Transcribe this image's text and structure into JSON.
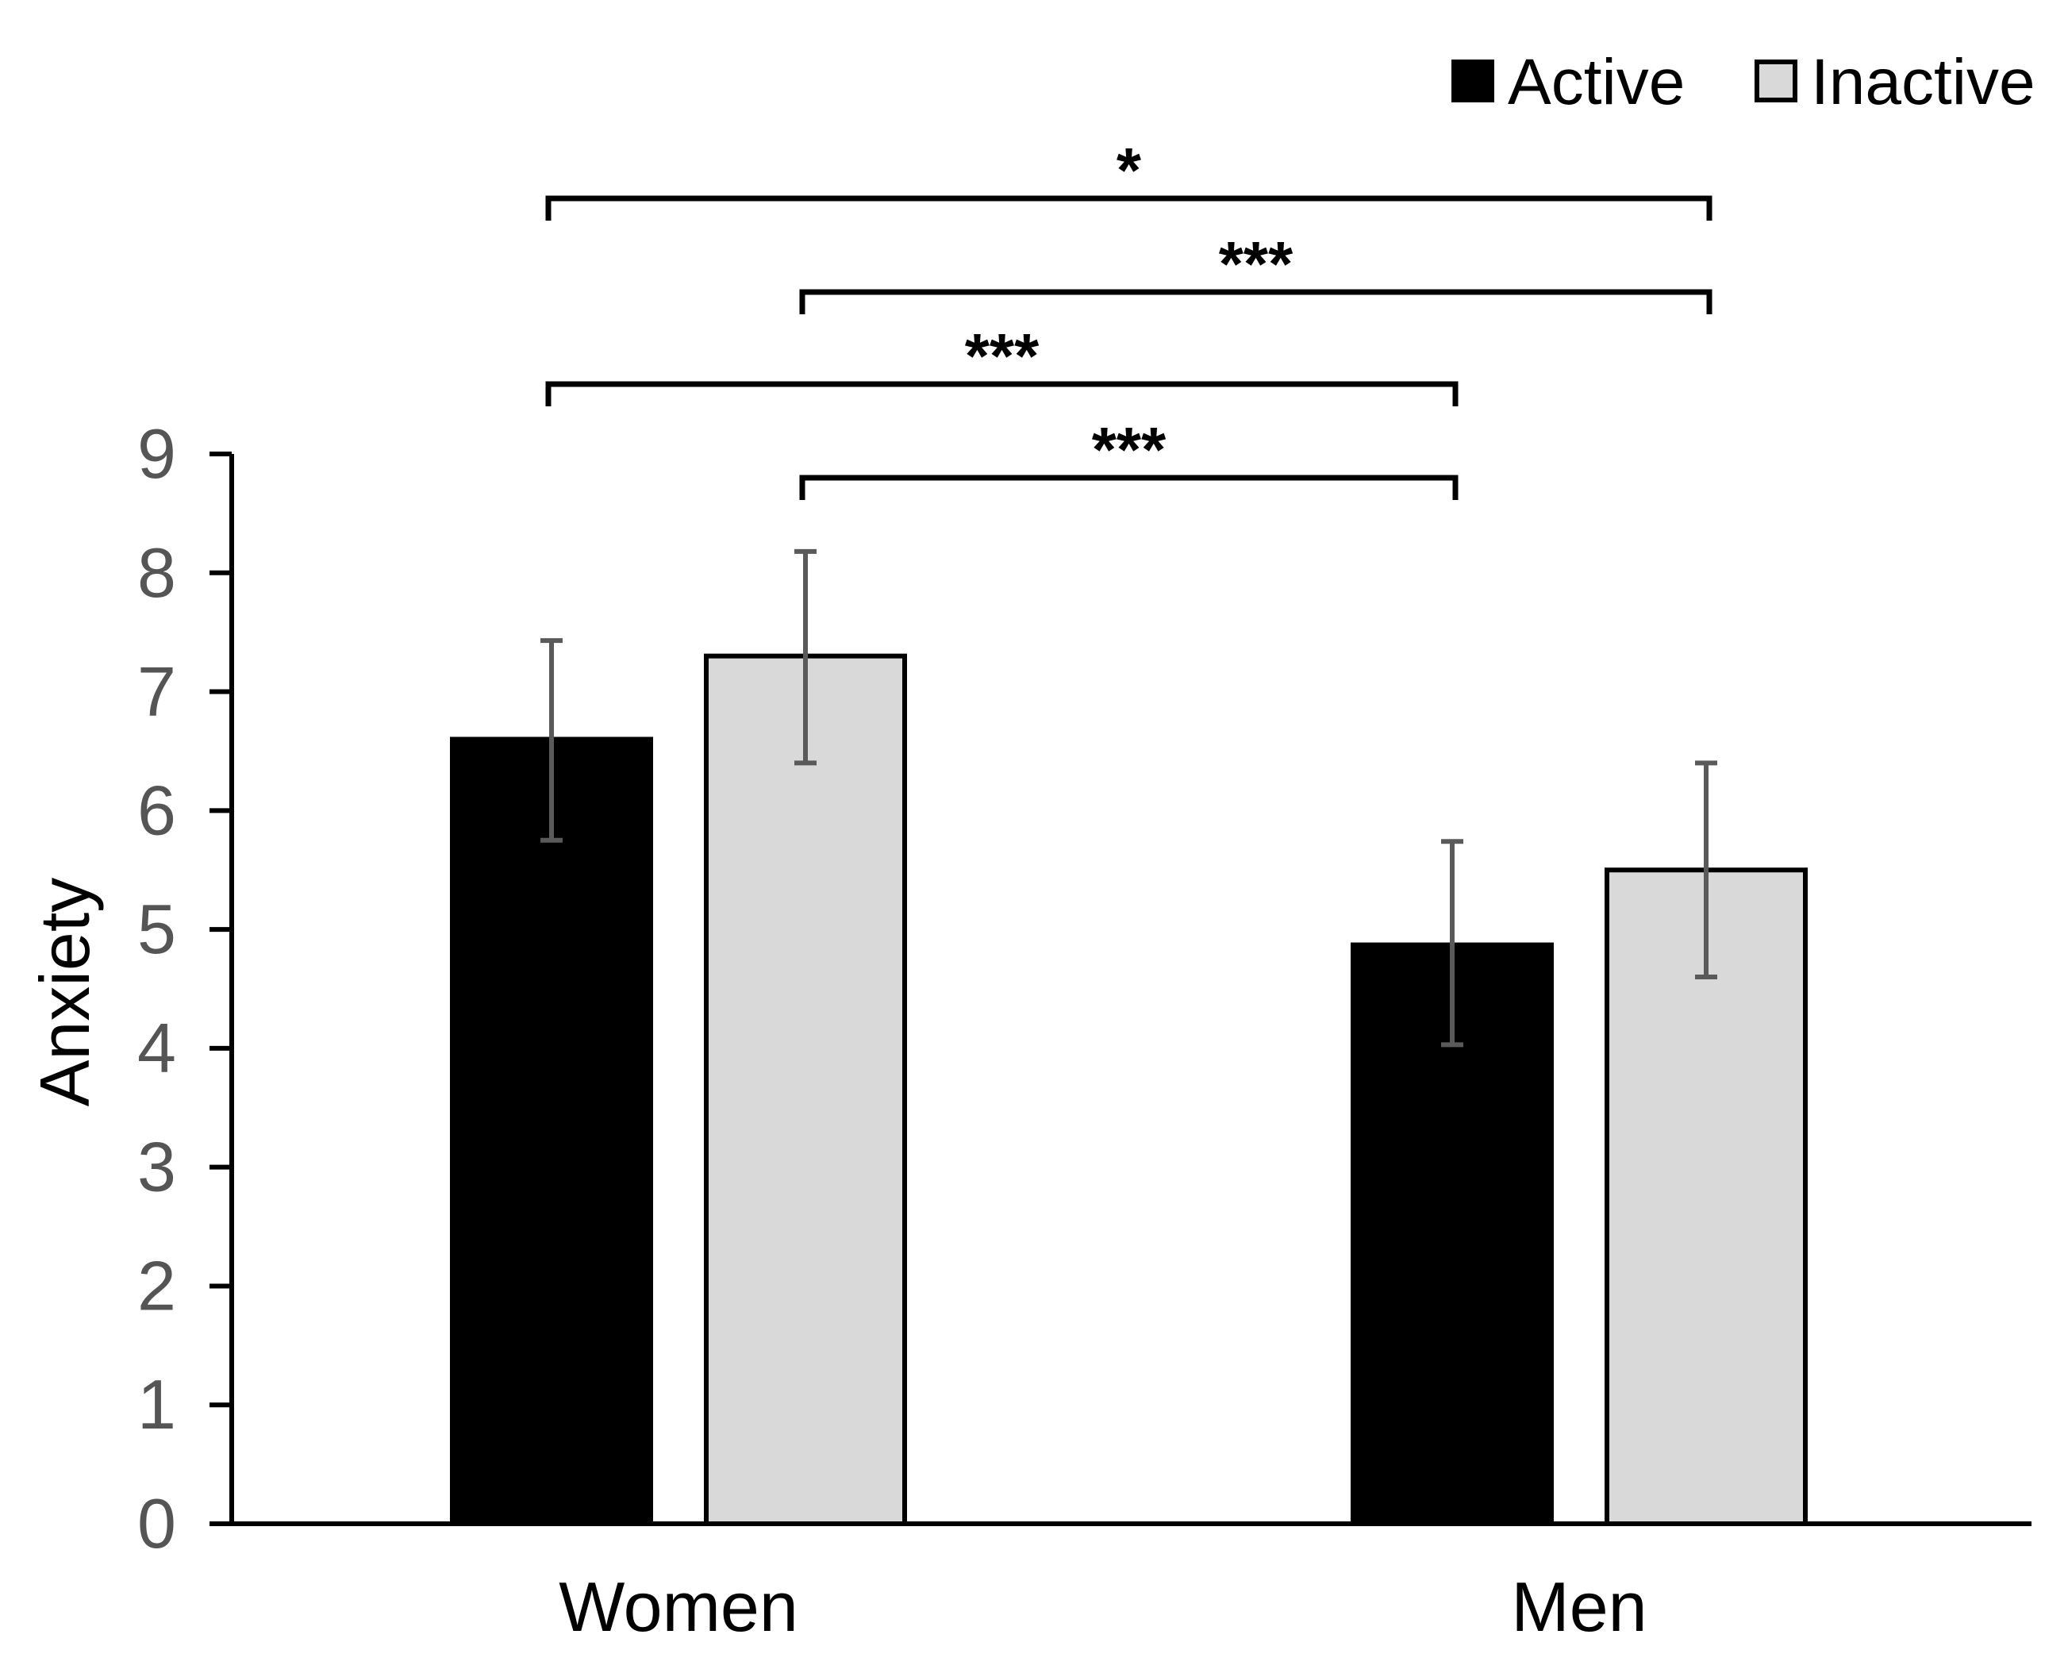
{
  "chart_data": {
    "type": "bar",
    "title": "",
    "xlabel": "",
    "ylabel": "Anxiety",
    "ylim": [
      0,
      9
    ],
    "yticks": [
      "0",
      "1",
      "2",
      "3",
      "4",
      "5",
      "6",
      "7",
      "8",
      "9"
    ],
    "grid": false,
    "legend_position": "top-right",
    "categories": [
      "Women",
      "Men"
    ],
    "series": [
      {
        "name": "Active",
        "color": "#000000",
        "values": [
          6.6,
          4.87
        ],
        "error_low": [
          5.75,
          4.03
        ],
        "error_high": [
          7.43,
          5.74
        ]
      },
      {
        "name": "Inactive",
        "color": "#d9d9d9",
        "values": [
          7.3,
          5.5
        ],
        "error_low": [
          6.4,
          4.6
        ],
        "error_high": [
          8.18,
          6.4
        ]
      }
    ],
    "significance": [
      {
        "label": "*",
        "from": {
          "category": 0,
          "series": 0
        },
        "to": {
          "category": 1,
          "series": 1
        }
      },
      {
        "label": "***",
        "from": {
          "category": 0,
          "series": 1
        },
        "to": {
          "category": 1,
          "series": 1
        }
      },
      {
        "label": "***",
        "from": {
          "category": 0,
          "series": 0
        },
        "to": {
          "category": 1,
          "series": 0
        }
      },
      {
        "label": "***",
        "from": {
          "category": 0,
          "series": 1
        },
        "to": {
          "category": 1,
          "series": 0
        }
      }
    ]
  }
}
